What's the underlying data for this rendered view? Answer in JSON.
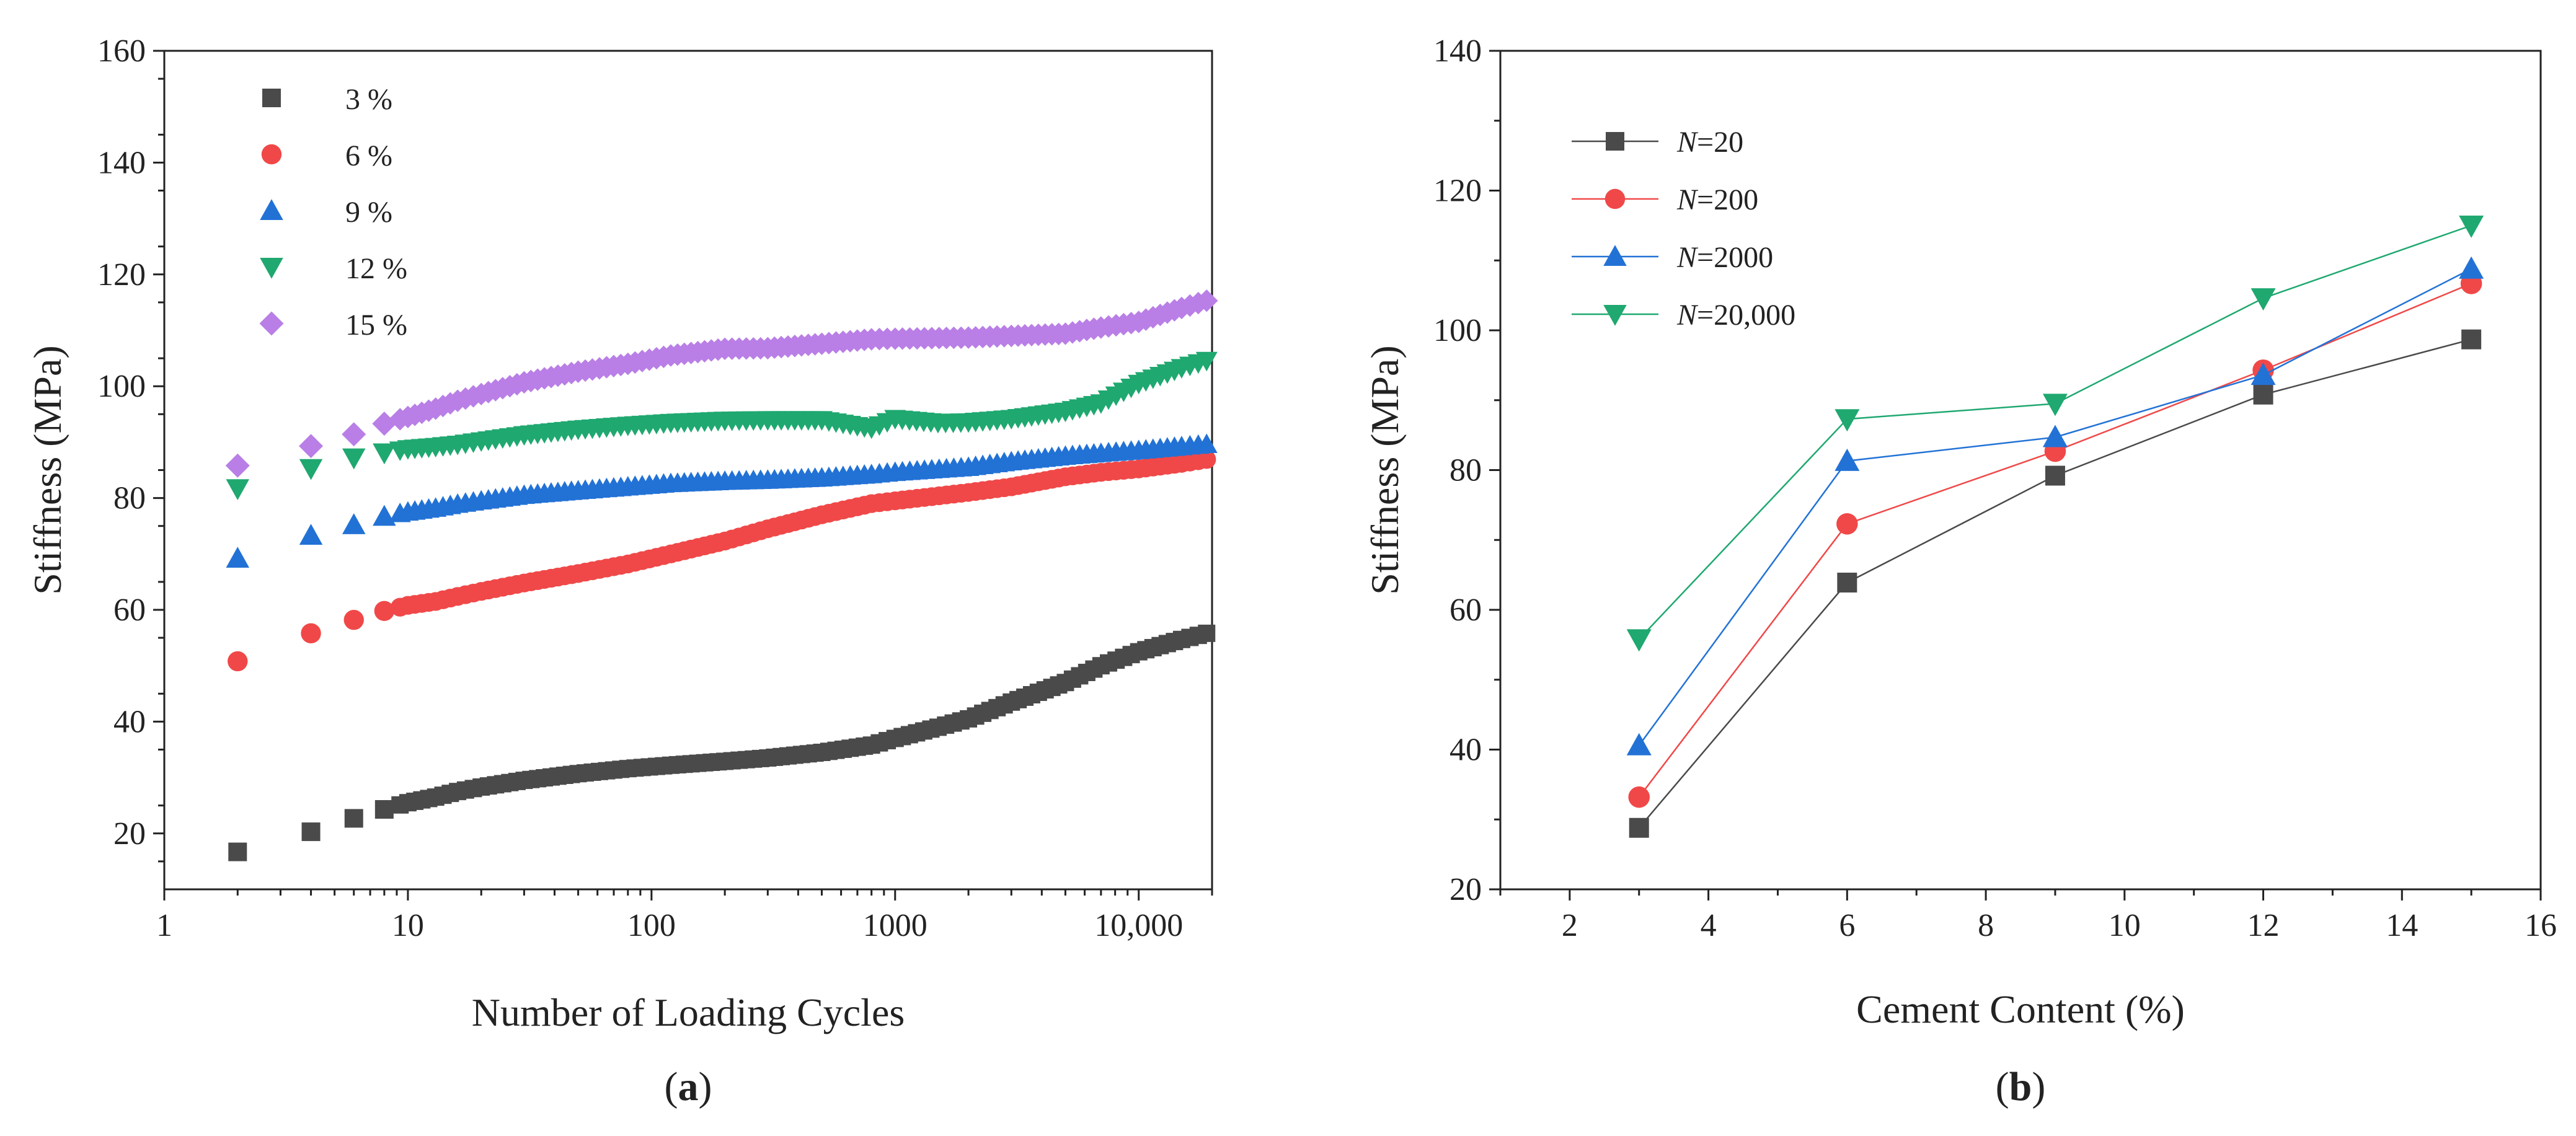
{
  "colors": {
    "black": "#4a4a4a",
    "red": "#f04848",
    "blue": "#2272d6",
    "green": "#1fa870",
    "purple": "#b97fe6",
    "axis": "#222222"
  },
  "chart_data": [
    {
      "id": "a",
      "type": "scatter",
      "caption": {
        "open": "(",
        "letter": "a",
        "close": ")"
      },
      "xlabel": "Number of Loading Cycles",
      "ylabel": "Stiffness (MPa)",
      "xscale": "log",
      "xlim": [
        1,
        20000
      ],
      "ylim": [
        10,
        160
      ],
      "xticks": [
        {
          "value": 1,
          "label": "1"
        },
        {
          "value": 10,
          "label": "10"
        },
        {
          "value": 100,
          "label": "100"
        },
        {
          "value": 1000,
          "label": "1000"
        },
        {
          "value": 10000,
          "label": "10,000"
        }
      ],
      "yticks": [
        20,
        40,
        60,
        80,
        100,
        120,
        140,
        160
      ],
      "legend_position": "top-left",
      "series": [
        {
          "name": "3 %",
          "marker": "square",
          "color": "#4a4a4a",
          "points": [
            [
              2,
              16.7
            ],
            [
              4,
              20.3
            ],
            [
              6,
              22.7
            ],
            [
              8,
              24.3
            ],
            [
              10,
              25.5
            ],
            [
              13,
              26.5
            ],
            [
              16,
              27.5
            ],
            [
              20,
              28.3
            ],
            [
              30,
              29.5
            ],
            [
              50,
              30.7
            ],
            [
              80,
              31.6
            ],
            [
              120,
              32.2
            ],
            [
              200,
              32.9
            ],
            [
              300,
              33.5
            ],
            [
              500,
              34.5
            ],
            [
              800,
              35.8
            ],
            [
              1000,
              37
            ],
            [
              1500,
              39
            ],
            [
              2000,
              40.5
            ],
            [
              3000,
              43.5
            ],
            [
              5000,
              47
            ],
            [
              7000,
              50
            ],
            [
              10000,
              52.5
            ],
            [
              15000,
              54.7
            ],
            [
              19000,
              55.8
            ]
          ]
        },
        {
          "name": "6 %",
          "marker": "circle",
          "color": "#f04848",
          "points": [
            [
              2,
              50.8
            ],
            [
              4,
              55.8
            ],
            [
              6,
              58.2
            ],
            [
              8,
              59.8
            ],
            [
              10,
              60.8
            ],
            [
              13,
              61.5
            ],
            [
              16,
              62.4
            ],
            [
              20,
              63.3
            ],
            [
              30,
              64.8
            ],
            [
              50,
              66.5
            ],
            [
              80,
              68.2
            ],
            [
              120,
              70
            ],
            [
              200,
              72.3
            ],
            [
              300,
              74.5
            ],
            [
              500,
              77
            ],
            [
              800,
              79
            ],
            [
              1000,
              79.5
            ],
            [
              2000,
              81
            ],
            [
              3000,
              82
            ],
            [
              5000,
              83.8
            ],
            [
              7000,
              84.6
            ],
            [
              10000,
              85.2
            ],
            [
              15000,
              86.2
            ],
            [
              19000,
              86.9
            ]
          ]
        },
        {
          "name": "9 %",
          "marker": "triangle-up",
          "color": "#2272d6",
          "points": [
            [
              2,
              69.2
            ],
            [
              4,
              73.3
            ],
            [
              6,
              75.2
            ],
            [
              8,
              76.7
            ],
            [
              10,
              77.5
            ],
            [
              13,
              78.2
            ],
            [
              16,
              78.9
            ],
            [
              20,
              79.5
            ],
            [
              30,
              80.5
            ],
            [
              50,
              81.3
            ],
            [
              80,
              82
            ],
            [
              120,
              82.6
            ],
            [
              200,
              83
            ],
            [
              300,
              83.2
            ],
            [
              500,
              83.6
            ],
            [
              800,
              84.2
            ],
            [
              1000,
              84.6
            ],
            [
              2000,
              85.5
            ],
            [
              3000,
              86.5
            ],
            [
              5000,
              87.5
            ],
            [
              7000,
              88
            ],
            [
              10000,
              88.5
            ],
            [
              15000,
              89.2
            ],
            [
              19000,
              89.6
            ]
          ]
        },
        {
          "name": "12 %",
          "marker": "triangle-down",
          "color": "#1fa870",
          "points": [
            [
              2,
              81.7
            ],
            [
              4,
              85.3
            ],
            [
              6,
              87.2
            ],
            [
              8,
              88.1
            ],
            [
              10,
              88.8
            ],
            [
              13,
              89.2
            ],
            [
              16,
              89.6
            ],
            [
              20,
              90.2
            ],
            [
              30,
              91.3
            ],
            [
              50,
              92.3
            ],
            [
              80,
              93
            ],
            [
              120,
              93.5
            ],
            [
              200,
              93.9
            ],
            [
              300,
              94
            ],
            [
              500,
              94
            ],
            [
              800,
              92.5
            ],
            [
              1000,
              94.2
            ],
            [
              1500,
              93.5
            ],
            [
              2000,
              93.6
            ],
            [
              3000,
              94.2
            ],
            [
              5000,
              95.5
            ],
            [
              7000,
              97
            ],
            [
              10000,
              100.5
            ],
            [
              15000,
              103.3
            ],
            [
              19000,
              104.6
            ]
          ]
        },
        {
          "name": "15 %",
          "marker": "diamond",
          "color": "#b97fe6",
          "points": [
            [
              2,
              85.8
            ],
            [
              4,
              89.3
            ],
            [
              6,
              91.4
            ],
            [
              8,
              93.3
            ],
            [
              10,
              94.5
            ],
            [
              13,
              96
            ],
            [
              16,
              97.4
            ],
            [
              20,
              98.6
            ],
            [
              30,
              100.7
            ],
            [
              50,
              102.6
            ],
            [
              80,
              104
            ],
            [
              120,
              105.5
            ],
            [
              200,
              106.7
            ],
            [
              300,
              106.8
            ],
            [
              500,
              107.6
            ],
            [
              800,
              108.4
            ],
            [
              1000,
              108.5
            ],
            [
              2000,
              108.7
            ],
            [
              3000,
              109
            ],
            [
              5000,
              109.4
            ],
            [
              7000,
              110.5
            ],
            [
              10000,
              111.5
            ],
            [
              15000,
              114
            ],
            [
              19000,
              115.3
            ]
          ]
        }
      ]
    },
    {
      "id": "b",
      "type": "line",
      "caption": {
        "open": "(",
        "letter": "b",
        "close": ")"
      },
      "xlabel": "Cement Content (%)",
      "ylabel": "Stiffness (MPa)",
      "xlim": [
        1,
        16
      ],
      "ylim": [
        20,
        140
      ],
      "xticks": [
        2,
        4,
        6,
        8,
        10,
        12,
        14,
        16
      ],
      "yticks": [
        20,
        40,
        60,
        80,
        100,
        120,
        140
      ],
      "legend_position": "top-left",
      "series": [
        {
          "var": "N",
          "eq": "=20",
          "marker": "square",
          "color": "#4a4a4a",
          "x": [
            3,
            6,
            9,
            12,
            15
          ],
          "y": [
            28.8,
            63.9,
            79.2,
            90.8,
            98.7
          ]
        },
        {
          "var": "N",
          "eq": "=200",
          "marker": "circle",
          "color": "#f04848",
          "x": [
            3,
            6,
            9,
            12,
            15
          ],
          "y": [
            33.2,
            72.3,
            82.7,
            94.3,
            106.7
          ]
        },
        {
          "var": "N",
          "eq": "=2000",
          "marker": "triangle-up",
          "color": "#2272d6",
          "x": [
            3,
            6,
            9,
            12,
            15
          ],
          "y": [
            40.6,
            81.3,
            84.7,
            93.6,
            108.8
          ]
        },
        {
          "var": "N",
          "eq": "=20,000",
          "marker": "triangle-down",
          "color": "#1fa870",
          "x": [
            3,
            6,
            9,
            12,
            15
          ],
          "y": [
            55.8,
            87.3,
            89.5,
            104.6,
            115
          ]
        }
      ]
    }
  ]
}
